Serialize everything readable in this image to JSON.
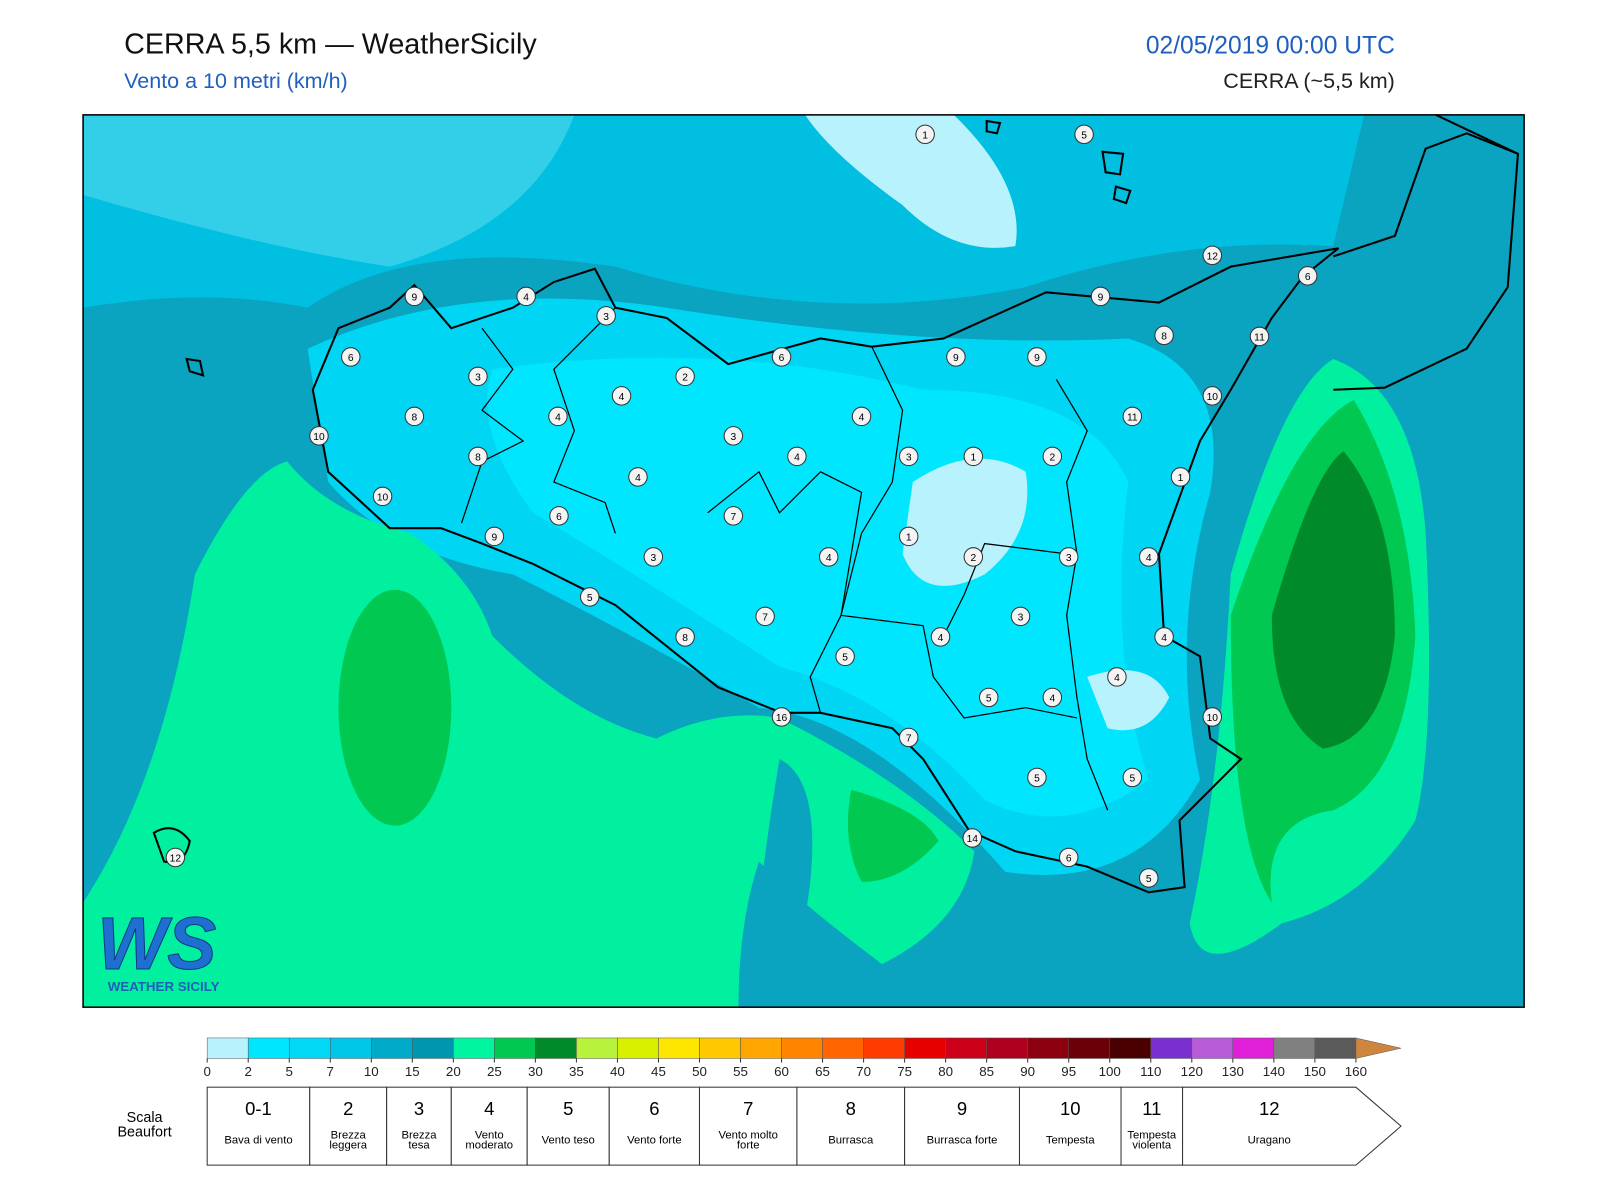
{
  "header": {
    "title": "CERRA 5,5 km — WeatherSicily",
    "subtitle": "Vento a 10 metri (km/h)",
    "datetime": "02/05/2019 00:00 UTC",
    "model": "CERRA (~5,5 km)"
  },
  "map": {
    "stations": [
      1,
      5,
      12,
      6,
      9,
      4,
      3,
      9,
      8,
      11,
      6,
      6,
      9,
      9,
      3,
      2,
      4,
      10,
      8,
      4,
      4,
      11,
      10,
      3,
      8,
      4,
      3,
      1,
      2,
      4,
      1,
      10,
      6,
      7,
      9,
      1,
      3,
      4,
      2,
      3,
      4,
      5,
      3,
      7,
      8,
      4,
      4,
      5,
      4,
      5,
      4,
      16,
      10,
      7,
      5,
      5,
      14,
      6,
      5,
      12
    ]
  },
  "logo": {
    "mark": "WS",
    "text": "WEATHER SICILY"
  },
  "colorbar": {
    "ticks": [
      0,
      2,
      5,
      7,
      10,
      15,
      20,
      25,
      30,
      35,
      40,
      45,
      50,
      55,
      60,
      65,
      70,
      75,
      80,
      85,
      90,
      95,
      100,
      110,
      120,
      130,
      140,
      150,
      160
    ],
    "colors": [
      "#b8f2fc",
      "#00e6ff",
      "#00d8f6",
      "#00c6e8",
      "#00abc9",
      "#0096ad",
      "#00f5a0",
      "#00c850",
      "#008a2a",
      "#b8f23c",
      "#d8f000",
      "#ffe600",
      "#ffc800",
      "#ffa600",
      "#ff8400",
      "#ff6400",
      "#ff3c00",
      "#e60000",
      "#cc0018",
      "#b00020",
      "#8c0010",
      "#6a0008",
      "#4a0000",
      "#7a30d0",
      "#b85cd8",
      "#e020d8",
      "#808080",
      "#5a5a5a",
      "#000000",
      "#8b4a2a",
      "#cd853f"
    ],
    "extend_color": "#cd853f"
  },
  "beaufort": {
    "label": "Scala Beaufort",
    "levels": [
      {
        "number": "0-1",
        "name": "Bava di vento"
      },
      {
        "number": "2",
        "name": "Brezza leggera"
      },
      {
        "number": "3",
        "name": "Brezza tesa"
      },
      {
        "number": "4",
        "name": "Vento moderato"
      },
      {
        "number": "5",
        "name": "Vento teso"
      },
      {
        "number": "6",
        "name": "Vento forte"
      },
      {
        "number": "7",
        "name": "Vento molto forte"
      },
      {
        "number": "8",
        "name": "Burrasca"
      },
      {
        "number": "9",
        "name": "Burrasca forte"
      },
      {
        "number": "10",
        "name": "Tempesta"
      },
      {
        "number": "11",
        "name": "Tempesta violenta"
      },
      {
        "number": "12",
        "name": "Uragano"
      }
    ]
  }
}
